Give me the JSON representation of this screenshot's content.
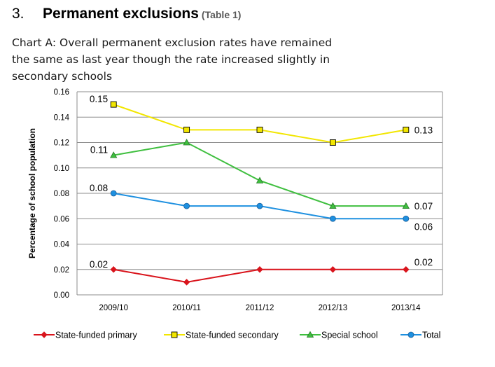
{
  "heading": {
    "number": "3.",
    "title": "Permanent exclusions",
    "table_ref": "(Table 1)"
  },
  "caption": "Chart A: Overall permanent exclusion rates have remained the same as last year though the rate increased slightly in secondary schools",
  "colors": {
    "state_funded_primary": "#d9141c",
    "state_funded_secondary": "#f2e600",
    "special_school": "#3fbf3f",
    "total": "#1e90e0",
    "gridline": "#8c8c8c"
  },
  "chart_data": {
    "type": "line",
    "x": [
      "2009/10",
      "2010/11",
      "2011/12",
      "2012/13",
      "2013/14"
    ],
    "ylabel": "Percentage of school population",
    "xlabel": "",
    "ylim": [
      0,
      0.16
    ],
    "yticks": [
      "0.00",
      "0.02",
      "0.04",
      "0.06",
      "0.08",
      "0.10",
      "0.12",
      "0.14",
      "0.16"
    ],
    "grid": true,
    "legend": "bottom",
    "series": [
      {
        "name": "State-funded primary",
        "key": "state_funded_primary",
        "marker": "diamond",
        "values": [
          0.02,
          0.01,
          0.02,
          0.02,
          0.02
        ],
        "labels": [
          {
            "index": 0,
            "text": "0.02"
          },
          {
            "index": 4,
            "text": "0.02"
          }
        ]
      },
      {
        "name": "State-funded secondary",
        "key": "state_funded_secondary",
        "marker": "square",
        "values": [
          0.15,
          0.13,
          0.13,
          0.12,
          0.13
        ],
        "labels": [
          {
            "index": 0,
            "text": "0.15"
          },
          {
            "index": 4,
            "text": "0.13"
          }
        ]
      },
      {
        "name": "Special school",
        "key": "special_school",
        "marker": "triangle",
        "values": [
          0.11,
          0.12,
          0.09,
          0.07,
          0.07
        ],
        "labels": [
          {
            "index": 0,
            "text": "0.11"
          },
          {
            "index": 4,
            "text": "0.07"
          }
        ]
      },
      {
        "name": "Total",
        "key": "total",
        "marker": "circle",
        "values": [
          0.08,
          0.07,
          0.07,
          0.06,
          0.06
        ],
        "labels": [
          {
            "index": 0,
            "text": "0.08"
          },
          {
            "index": 4,
            "text": "0.06"
          }
        ]
      }
    ]
  }
}
